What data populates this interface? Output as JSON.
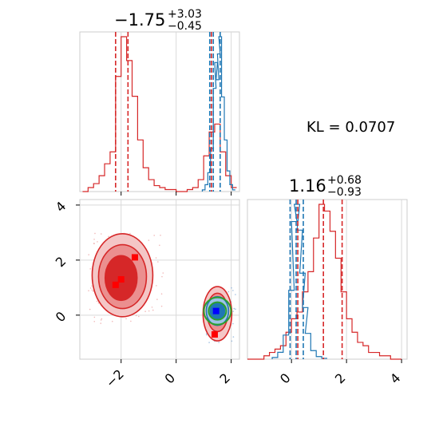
{
  "chart_data": {
    "type": "scatter",
    "kind": "corner-plot",
    "parameters": 2,
    "grid": true,
    "annotations": {
      "kl_text": "KL = 0.0707",
      "param1_title": {
        "median": "−1.75",
        "plus": "+3.03",
        "minus": "−0.45"
      },
      "param2_title": {
        "median": "1.16",
        "plus": "+0.68",
        "minus": "−0.93"
      }
    },
    "axes": {
      "param1": {
        "lim": [
          -3.5,
          2.3
        ],
        "ticks": [
          -2,
          0,
          2
        ],
        "tick_labels": [
          "−2",
          "0",
          "2"
        ]
      },
      "param2": {
        "lim": [
          -1.6,
          4.2
        ],
        "ticks": [
          0,
          2,
          4
        ],
        "tick_labels": [
          "0",
          "2",
          "4"
        ]
      }
    },
    "series": [
      {
        "color": "#d62728",
        "param1_hist": {
          "x": [
            -3.3,
            -3.1,
            -2.9,
            -2.7,
            -2.5,
            -2.3,
            -2.1,
            -1.9,
            -1.7,
            -1.5,
            -1.3,
            -1.1,
            -0.9,
            -0.7,
            -0.5,
            -0.3,
            -0.1,
            0.1,
            0.3,
            0.5,
            0.7,
            0.9,
            1.1,
            1.3,
            1.5,
            1.7,
            1.9,
            2.1
          ],
          "y": [
            0,
            2,
            4,
            8,
            14,
            20,
            58,
            78,
            66,
            48,
            26,
            12,
            6,
            3,
            2,
            1,
            1,
            0,
            0,
            1,
            2,
            6,
            18,
            30,
            34,
            20,
            8,
            2
          ]
        },
        "param1_quantiles": [
          -2.2,
          -1.75,
          1.28
        ],
        "param2_hist": {
          "x": [
            -1.5,
            -1.3,
            -1.1,
            -0.9,
            -0.7,
            -0.5,
            -0.3,
            -0.1,
            0.1,
            0.3,
            0.5,
            0.7,
            0.9,
            1.1,
            1.3,
            1.5,
            1.7,
            1.9,
            2.1,
            2.3,
            2.5,
            2.7,
            2.9,
            3.1,
            3.3,
            3.5,
            3.7,
            3.9
          ],
          "y": [
            0,
            0,
            0,
            1,
            2,
            3,
            4,
            8,
            12,
            14,
            20,
            26,
            36,
            46,
            44,
            38,
            30,
            20,
            12,
            8,
            5,
            4,
            2,
            2,
            1,
            1,
            0,
            0
          ]
        },
        "param2_quantiles": [
          0.23,
          1.16,
          1.84
        ],
        "mode_markers": [
          [
            -1.5,
            2.1
          ],
          [
            -2.0,
            1.3
          ],
          [
            -2.2,
            1.1
          ],
          [
            1.4,
            -0.7
          ]
        ]
      },
      {
        "color": "#1f77b4",
        "param1_hist": {
          "x": [
            1.0,
            1.1,
            1.2,
            1.3,
            1.4,
            1.45,
            1.5,
            1.55,
            1.6,
            1.7,
            1.8,
            1.9,
            2.0,
            2.1
          ],
          "y": [
            2,
            8,
            22,
            50,
            120,
            150,
            130,
            160,
            180,
            110,
            60,
            24,
            8,
            2
          ]
        },
        "param1_quantiles": [
          1.22,
          1.35,
          1.6
        ],
        "param2_hist": {
          "x": [
            -0.6,
            -0.4,
            -0.2,
            0.0,
            0.1,
            0.2,
            0.3,
            0.4,
            0.5,
            0.6,
            0.8,
            1.0,
            1.2
          ],
          "y": [
            2,
            8,
            28,
            80,
            160,
            180,
            150,
            100,
            60,
            30,
            10,
            3,
            1
          ]
        },
        "param2_quantiles": [
          -0.05,
          0.17,
          0.43
        ],
        "mode_markers": [
          [
            1.45,
            0.15
          ]
        ]
      },
      {
        "color": "#2ca02c",
        "overlay_circles": [
          [
            1.5,
            0.15
          ]
        ]
      }
    ]
  }
}
